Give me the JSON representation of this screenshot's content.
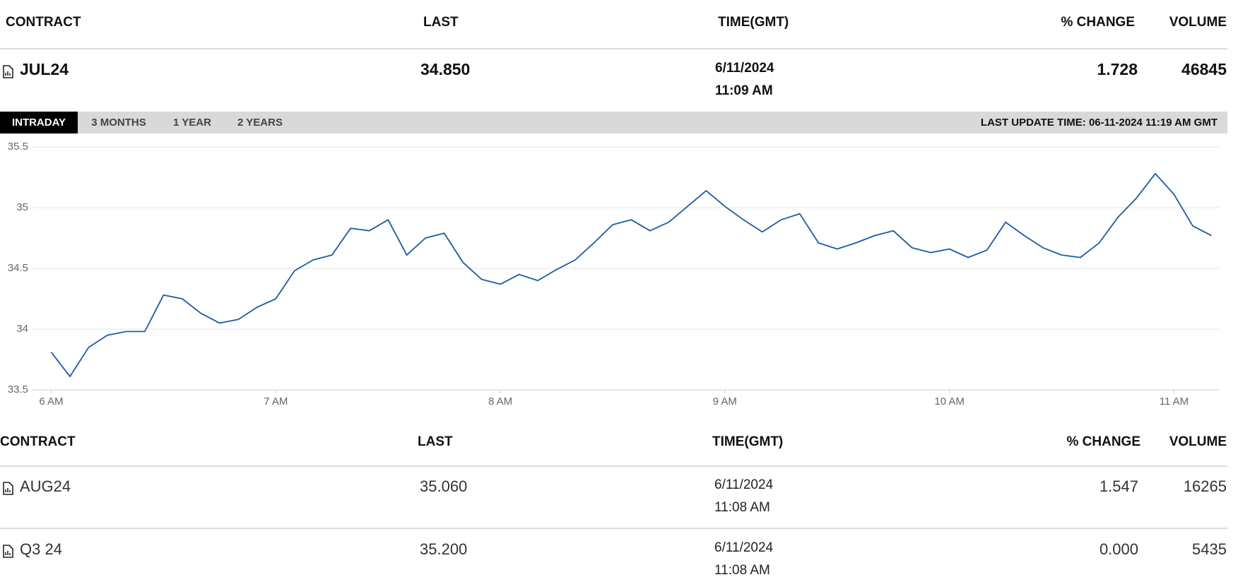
{
  "main_table": {
    "headers": [
      "CONTRACT",
      "LAST",
      "TIME(GMT)",
      "% CHANGE",
      "VOLUME"
    ],
    "row": {
      "contract": "JUL24",
      "last": "34.850",
      "time": [
        "6/11/2024",
        "11:09 AM"
      ],
      "change": "1.728",
      "volume": "46845"
    }
  },
  "tabs": [
    "INTRADAY",
    "3 MONTHS",
    "1 YEAR",
    "2 YEARS"
  ],
  "active_tab": 0,
  "last_update": "LAST UPDATE TIME: 06-11-2024 11:19 AM GMT",
  "chart_data": {
    "type": "line",
    "x": [
      360,
      365,
      370,
      375,
      380,
      385,
      390,
      395,
      400,
      405,
      410,
      415,
      420,
      425,
      430,
      435,
      440,
      445,
      450,
      455,
      460,
      465,
      470,
      475,
      480,
      485,
      490,
      495,
      500,
      505,
      510,
      515,
      520,
      525,
      530,
      535,
      540,
      545,
      550,
      555,
      560,
      565,
      570,
      575,
      580,
      585,
      590,
      595,
      600,
      605,
      610,
      615,
      620,
      625,
      630,
      635,
      640,
      645,
      650,
      655,
      660,
      665,
      670
    ],
    "series": [
      {
        "color": "#1a5ba6",
        "values": [
          33.81,
          33.61,
          33.85,
          33.95,
          33.98,
          33.98,
          34.28,
          34.25,
          34.13,
          34.05,
          34.08,
          34.18,
          34.25,
          34.48,
          34.57,
          34.61,
          34.83,
          34.81,
          34.9,
          34.61,
          34.75,
          34.79,
          34.55,
          34.41,
          34.37,
          34.45,
          34.4,
          34.49,
          34.57,
          34.71,
          34.86,
          34.9,
          34.81,
          34.88,
          35.01,
          35.14,
          35.01,
          34.9,
          34.8,
          34.9,
          34.95,
          34.71,
          34.66,
          34.71,
          34.77,
          34.81,
          34.67,
          34.63,
          34.66,
          34.59,
          34.65,
          34.88,
          34.77,
          34.67,
          34.61,
          34.59,
          34.71,
          34.92,
          35.08,
          35.28,
          35.11,
          34.85,
          34.77
        ]
      }
    ],
    "xlim": [
      355,
      672
    ],
    "xticks": [
      {
        "value": 360,
        "label": "6 AM"
      },
      {
        "value": 420,
        "label": "7 AM"
      },
      {
        "value": 480,
        "label": "8 AM"
      },
      {
        "value": 540,
        "label": "9 AM"
      },
      {
        "value": 600,
        "label": "10 AM"
      },
      {
        "value": 660,
        "label": "11 AM"
      }
    ],
    "ylim": [
      33.5,
      35.5
    ],
    "yticks": [
      33.5,
      34,
      34.5,
      35,
      35.5
    ],
    "grid": true
  },
  "bottom_table": {
    "headers": [
      "CONTRACT",
      "LAST",
      "TIME(GMT)",
      "% CHANGE",
      "VOLUME"
    ],
    "rows": [
      {
        "contract": "AUG24",
        "last": "35.060",
        "time": [
          "6/11/2024",
          "11:08 AM"
        ],
        "change": "1.547",
        "volume": "16265"
      },
      {
        "contract": "Q3 24",
        "last": "35.200",
        "time": [
          "6/11/2024",
          "11:08 AM"
        ],
        "change": "0.000",
        "volume": "5435"
      }
    ]
  }
}
